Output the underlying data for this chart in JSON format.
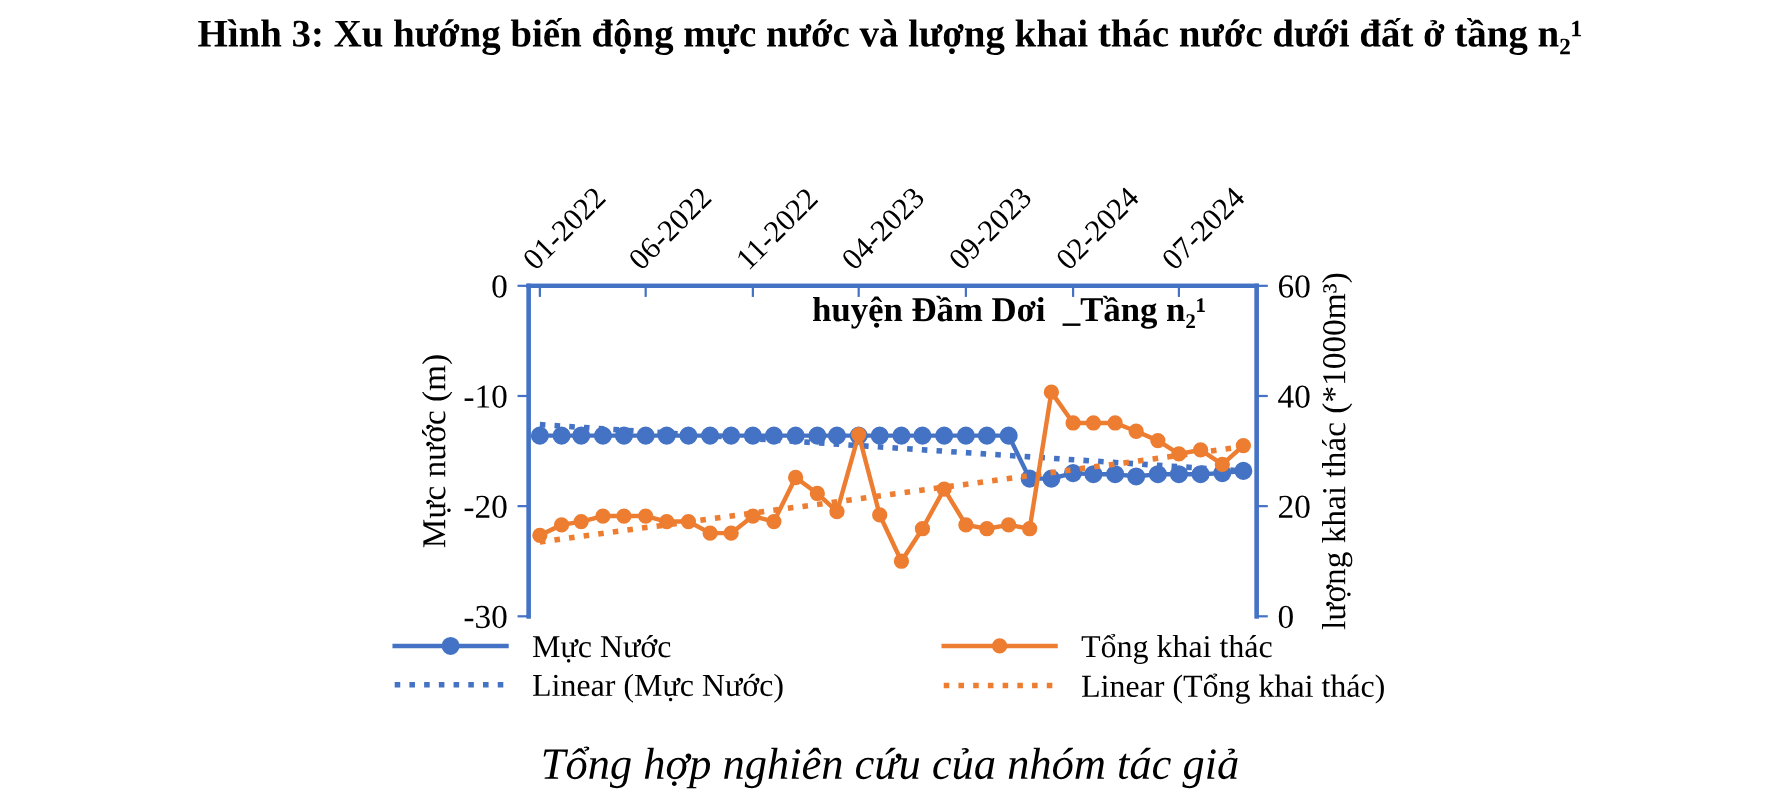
{
  "chart_data": {
    "type": "line",
    "title": "Hình 3: Xu hướng biến động mực nước và lượng khai thác nước dưới đất ở tầng n₂¹",
    "subtitle": "huyện Đầm Dơi  _Tầng n₂¹",
    "ylabel": "Mực nước (m)",
    "y2label": "lượng khai thác (*1000m³)",
    "x": [
      "2022-01",
      "2022-02",
      "2022-03",
      "2022-04",
      "2022-05",
      "2022-06",
      "2022-07",
      "2022-08",
      "2022-09",
      "2022-10",
      "2022-11",
      "2022-12",
      "2023-01",
      "2023-02",
      "2023-03",
      "2023-04",
      "2023-05",
      "2023-06",
      "2023-07",
      "2023-08",
      "2023-09",
      "2023-10",
      "2023-11",
      "2023-12",
      "2024-01",
      "2024-02",
      "2024-03",
      "2024-04",
      "2024-05",
      "2024-06",
      "2024-07",
      "2024-08",
      "2024-09",
      "2024-10"
    ],
    "xlim": [
      "2021-12-16",
      "2024-10-20"
    ],
    "xticks": [
      {
        "value": "2022-01",
        "label": "01-2022"
      },
      {
        "value": "2022-06",
        "label": "06-2022"
      },
      {
        "value": "2022-11",
        "label": "11-2022"
      },
      {
        "value": "2023-04",
        "label": "04-2023"
      },
      {
        "value": "2023-09",
        "label": "09-2023"
      },
      {
        "value": "2024-02",
        "label": "02-2024"
      },
      {
        "value": "2024-07",
        "label": "07-2024"
      }
    ],
    "ylim": [
      -30,
      0
    ],
    "yticks": [
      -30,
      -20,
      -10,
      0
    ],
    "y2lim": [
      0,
      60
    ],
    "y2ticks": [
      0,
      20,
      40,
      60
    ],
    "series": [
      {
        "name": "Mực Nước",
        "color": "#4472c4",
        "marker": "circle",
        "line_style": "solid",
        "values": [
          -13.6,
          -13.6,
          -13.6,
          -13.6,
          -13.6,
          -13.6,
          -13.6,
          -13.6,
          -13.6,
          -13.6,
          -13.6,
          -13.6,
          -13.6,
          -13.6,
          -13.6,
          -13.6,
          -13.6,
          -13.6,
          -13.6,
          -13.6,
          -13.6,
          -13.6,
          -13.6,
          -17.5,
          -17.5,
          -17.0,
          -17.1,
          -17.1,
          -17.3,
          -17.1,
          -17.1,
          -17.1,
          -17.0,
          -16.8
        ]
      },
      {
        "name": "Tổng khai thác",
        "color": "#ed7d31",
        "marker": "circle",
        "line_style": "solid",
        "axis": "y2",
        "values": [
          14.7,
          16.6,
          17.2,
          18.2,
          18.2,
          18.2,
          17.2,
          17.2,
          15.1,
          15.1,
          18.2,
          17.2,
          25.2,
          22.3,
          19.0,
          33.0,
          18.4,
          10.0,
          15.9,
          23.1,
          16.6,
          15.9,
          16.6,
          15.9,
          40.7,
          35.1,
          35.1,
          35.1,
          33.6,
          31.9,
          29.5,
          30.2,
          27.6,
          31.0
        ]
      },
      {
        "name": "Linear (Mực Nước)",
        "color": "#4472c4",
        "marker": "none",
        "line_style": "dotted",
        "x": [
          "2022-01",
          "2024-10"
        ],
        "values": [
          -12.6,
          -16.8
        ]
      },
      {
        "name": "Linear (Tổng khai thác)",
        "color": "#ed7d31",
        "marker": "none",
        "line_style": "dotted",
        "axis": "y2",
        "x": [
          "2022-01",
          "2024-10"
        ],
        "values": [
          13.5,
          30.8
        ]
      }
    ],
    "grid": false,
    "legend": "bottom",
    "annotations": [
      "Tổng hợp nghiên cứu của nhóm tác giả"
    ]
  }
}
